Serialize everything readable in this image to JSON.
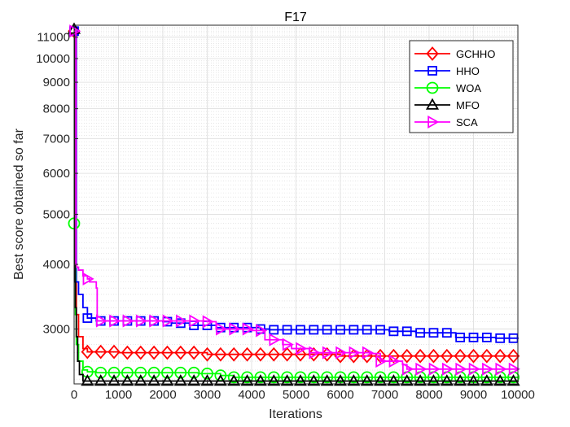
{
  "chart_data": {
    "type": "line",
    "title": "F17",
    "xlabel": "Iterations",
    "ylabel": "Best score obtained so far",
    "y_scale": "log",
    "xlim": [
      0,
      10000
    ],
    "ylim": [
      2350,
      11600
    ],
    "grid": true,
    "legend_position": "top-right",
    "x_ticks": [
      0,
      1000,
      2000,
      3000,
      4000,
      5000,
      6000,
      7000,
      8000,
      9000,
      10000
    ],
    "x_tick_labels": [
      "0",
      "1000",
      "2000",
      "3000",
      "4000",
      "5000",
      "6000",
      "7000",
      "8000",
      "9000",
      "10000"
    ],
    "y_ticks": [
      3000,
      4000,
      5000,
      6000,
      7000,
      8000,
      9000,
      10000,
      11000
    ],
    "y_tick_labels": [
      "3000",
      "4000",
      "5000",
      "6000",
      "7000",
      "8000",
      "9000",
      "10000",
      "11000"
    ],
    "series": [
      {
        "name": "GCHHO",
        "color": "#ff0000",
        "marker": "diamond",
        "x": [
          0,
          50,
          100,
          200,
          300,
          1000,
          3000,
          6000,
          10000
        ],
        "y": [
          11300,
          3200,
          2900,
          2750,
          2710,
          2700,
          2680,
          2660,
          2650
        ],
        "marker_x": [
          0,
          300,
          600,
          900,
          1200,
          1500,
          1800,
          2100,
          2400,
          2700,
          3000,
          3300,
          3600,
          3900,
          4200,
          4500,
          4800,
          5100,
          5400,
          5700,
          6000,
          6300,
          6600,
          6900,
          7200,
          7500,
          7800,
          8100,
          8400,
          8700,
          9000,
          9300,
          9600,
          9900
        ]
      },
      {
        "name": "HHO",
        "color": "#0000ff",
        "marker": "square",
        "x": [
          0,
          50,
          100,
          200,
          300,
          500,
          2000,
          2200,
          2600,
          3200,
          4200,
          4400,
          6900,
          7100,
          7700,
          8500,
          8600,
          9500,
          10000
        ],
        "y": [
          11300,
          3700,
          3500,
          3300,
          3150,
          3110,
          3100,
          3080,
          3050,
          3020,
          3000,
          2990,
          2990,
          2970,
          2950,
          2950,
          2890,
          2880,
          2870
        ],
        "marker_x": [
          0,
          300,
          600,
          900,
          1200,
          1500,
          1800,
          2100,
          2400,
          2700,
          3000,
          3300,
          3600,
          3900,
          4200,
          4500,
          4800,
          5100,
          5400,
          5700,
          6000,
          6300,
          6600,
          6900,
          7200,
          7500,
          7800,
          8100,
          8400,
          8700,
          9000,
          9300,
          9600,
          9900
        ]
      },
      {
        "name": "WOA",
        "color": "#00ff00",
        "marker": "circle",
        "x": [
          0,
          30,
          50,
          100,
          200,
          300,
          500,
          2800,
          3300,
          3600,
          10000
        ],
        "y": [
          4800,
          3200,
          2800,
          2600,
          2500,
          2480,
          2470,
          2460,
          2440,
          2420,
          2410
        ],
        "marker_x": [
          0,
          300,
          600,
          900,
          1200,
          1500,
          1800,
          2100,
          2400,
          2700,
          3000,
          3300,
          3600,
          3900,
          4200,
          4500,
          4800,
          5100,
          5400,
          5700,
          6000,
          6300,
          6600,
          6900,
          7200,
          7500,
          7800,
          8100,
          8400,
          8700,
          9000,
          9300,
          9600,
          9900
        ]
      },
      {
        "name": "MFO",
        "color": "#000000",
        "marker": "triangle-up",
        "x": [
          0,
          10,
          20,
          30,
          50,
          80,
          120,
          200,
          10000
        ],
        "y": [
          11400,
          4200,
          3700,
          3300,
          2900,
          2600,
          2450,
          2380,
          2370
        ],
        "marker_x": [
          0,
          300,
          600,
          900,
          1200,
          1500,
          1800,
          2100,
          2400,
          2700,
          3000,
          3300,
          3600,
          3900,
          4200,
          4500,
          4800,
          5100,
          5400,
          5700,
          6000,
          6300,
          6600,
          6900,
          7200,
          7500,
          7800,
          8100,
          8400,
          8700,
          9000,
          9300,
          9600,
          9900
        ]
      },
      {
        "name": "SCA",
        "color": "#ff00ff",
        "marker": "triangle-right",
        "x": [
          0,
          40,
          60,
          100,
          200,
          300,
          350,
          500,
          520,
          3000,
          3200,
          4000,
          4300,
          4700,
          4900,
          5300,
          6700,
          6900,
          7400,
          7500,
          10000
        ],
        "y": [
          11300,
          4000,
          3950,
          3900,
          3800,
          3750,
          3700,
          3600,
          3110,
          3100,
          3000,
          2980,
          2860,
          2800,
          2750,
          2700,
          2690,
          2600,
          2560,
          2510,
          2500
        ],
        "marker_x": [
          0,
          300,
          600,
          900,
          1200,
          1500,
          1800,
          2100,
          2400,
          2700,
          3000,
          3300,
          3600,
          3900,
          4200,
          4500,
          4800,
          5100,
          5400,
          5700,
          6000,
          6300,
          6600,
          6900,
          7200,
          7500,
          7800,
          8100,
          8400,
          8700,
          9000,
          9300,
          9600,
          9900
        ]
      }
    ]
  }
}
